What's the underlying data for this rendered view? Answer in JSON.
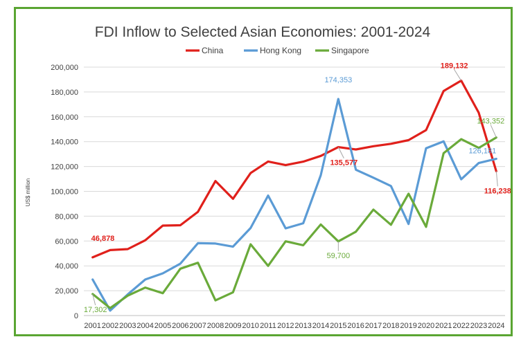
{
  "chart_data": {
    "type": "line",
    "title": "FDI Inflow to Selected Asian Economies: 2001-2024",
    "ylabel": "US$ million",
    "xlabel": "",
    "ylim": [
      0,
      200000
    ],
    "yticks": [
      0,
      20000,
      40000,
      60000,
      80000,
      100000,
      120000,
      140000,
      160000,
      180000,
      200000
    ],
    "ytick_labels": [
      "0",
      "20,000",
      "40,000",
      "60,000",
      "80,000",
      "100,000",
      "120,000",
      "140,000",
      "160,000",
      "180,000",
      "200,000"
    ],
    "grid": true,
    "legend_position": "top-center",
    "x": [
      "2001",
      "2002",
      "2003",
      "2004",
      "2005",
      "2006",
      "2007",
      "2008",
      "2009",
      "2010",
      "2011",
      "2012",
      "2013",
      "2014",
      "2015",
      "2016",
      "2017",
      "2018",
      "2019",
      "2020",
      "2021",
      "2022",
      "2023",
      "2024"
    ],
    "series": [
      {
        "name": "China",
        "color": "#e0201b",
        "values": [
          46878,
          52700,
          53500,
          60600,
          72400,
          72700,
          83500,
          108300,
          94000,
          114700,
          124000,
          121100,
          123900,
          128500,
          135577,
          133700,
          136300,
          138300,
          141200,
          149300,
          180800,
          189132,
          163300,
          116238
        ]
      },
      {
        "name": "Hong Kong",
        "color": "#5b9bd5",
        "values": [
          29000,
          4000,
          17000,
          29000,
          34000,
          41800,
          58300,
          58000,
          55500,
          70500,
          96600,
          70200,
          74300,
          113000,
          174353,
          117400,
          111000,
          104300,
          73700,
          134700,
          140200,
          109700,
          122800,
          126181
        ]
      },
      {
        "name": "Singapore",
        "color": "#6aaa3a",
        "values": [
          17302,
          6000,
          16000,
          22500,
          18000,
          37700,
          42500,
          12200,
          18700,
          57400,
          40000,
          59800,
          56600,
          73300,
          59700,
          67500,
          85300,
          73100,
          98100,
          71400,
          130700,
          142000,
          135000,
          143352
        ]
      }
    ],
    "annotations": [
      {
        "series": "China",
        "x": "2001",
        "text": "46,878"
      },
      {
        "series": "China",
        "x": "2015",
        "text": "135,577"
      },
      {
        "series": "China",
        "x": "2022",
        "text": "189,132"
      },
      {
        "series": "China",
        "x": "2024",
        "text": "116,238"
      },
      {
        "series": "Hong Kong",
        "x": "2015",
        "text": "174,353"
      },
      {
        "series": "Hong Kong",
        "x": "2024",
        "text": "126,181"
      },
      {
        "series": "Singapore",
        "x": "2001",
        "text": "17,302"
      },
      {
        "series": "Singapore",
        "x": "2015",
        "text": "59,700"
      },
      {
        "series": "Singapore",
        "x": "2024",
        "text": "143,352"
      }
    ]
  }
}
